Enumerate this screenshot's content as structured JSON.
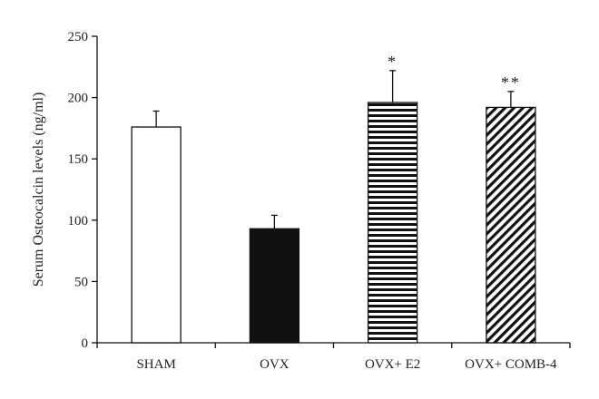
{
  "chart_data": {
    "type": "bar",
    "title": "",
    "xlabel": "",
    "ylabel": "Serum Osteocalcin levels (ng/ml)",
    "ylim": [
      0,
      250
    ],
    "yticks": [
      0,
      50,
      100,
      150,
      200,
      250
    ],
    "grid": false,
    "categories": [
      "SHAM",
      "OVX",
      "OVX+ E2",
      "OVX+ COMB-4"
    ],
    "values": [
      176,
      93,
      196,
      192
    ],
    "errors": [
      13,
      11,
      26,
      13
    ],
    "annotations": [
      "",
      "",
      "*",
      "**"
    ],
    "fills": [
      "white",
      "black",
      "horizontal-stripes",
      "diagonal-stripes"
    ],
    "colors": {
      "stroke": "#111111",
      "dark_fill": "#111111",
      "light_fill": "#ffffff"
    }
  }
}
